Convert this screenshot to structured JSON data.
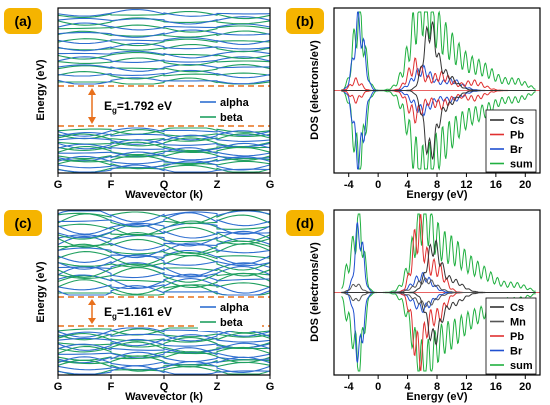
{
  "colors": {
    "alpha": "#2f6fd0",
    "beta": "#20a060",
    "dashed": "#e8701c",
    "arrow": "#e8701c",
    "badge": "#f5b400",
    "Cs": "#333333",
    "Pb": "#e03030",
    "Br": "#2050d0",
    "Mn": "#555555",
    "sum": "#20b040"
  },
  "chart_data": [
    {
      "type": "line",
      "panel": "(a)",
      "xlabel": "Wavevector (k)",
      "ylabel": "Energy (eV)",
      "x_ticks": [
        "G",
        "F",
        "Q",
        "Z",
        "G"
      ],
      "legend": [
        "alpha",
        "beta"
      ],
      "legend_position": "right-middle",
      "annotation": {
        "prefix": "E",
        "sub": "g",
        "value": "=1.792 eV"
      },
      "band_gap_eV": 1.792
    },
    {
      "type": "line",
      "panel": "(b)",
      "xlabel": "Energy (eV)",
      "ylabel": "DOS (electrons/eV)",
      "x_ticks": [
        "-4",
        "0",
        "4",
        "8",
        "12",
        "16",
        "20"
      ],
      "xlim": [
        -6,
        22
      ],
      "legend": [
        "Cs",
        "Pb",
        "Br",
        "sum"
      ],
      "legend_position": "bottom-right"
    },
    {
      "type": "line",
      "panel": "(c)",
      "xlabel": "Wavevector (k)",
      "ylabel": "Energy (eV)",
      "x_ticks": [
        "G",
        "F",
        "Q",
        "Z",
        "G"
      ],
      "legend": [
        "alpha",
        "beta"
      ],
      "legend_position": "right-middle",
      "annotation": {
        "prefix": "E",
        "sub": "g",
        "value": "=1.161 eV"
      },
      "band_gap_eV": 1.161
    },
    {
      "type": "line",
      "panel": "(d)",
      "xlabel": "Energy (eV)",
      "ylabel": "DOS (electrons/eV)",
      "x_ticks": [
        "-4",
        "0",
        "4",
        "8",
        "12",
        "16",
        "20"
      ],
      "xlim": [
        -6,
        22
      ],
      "legend": [
        "Cs",
        "Mn",
        "Pb",
        "Br",
        "sum"
      ],
      "legend_position": "bottom-right"
    }
  ]
}
